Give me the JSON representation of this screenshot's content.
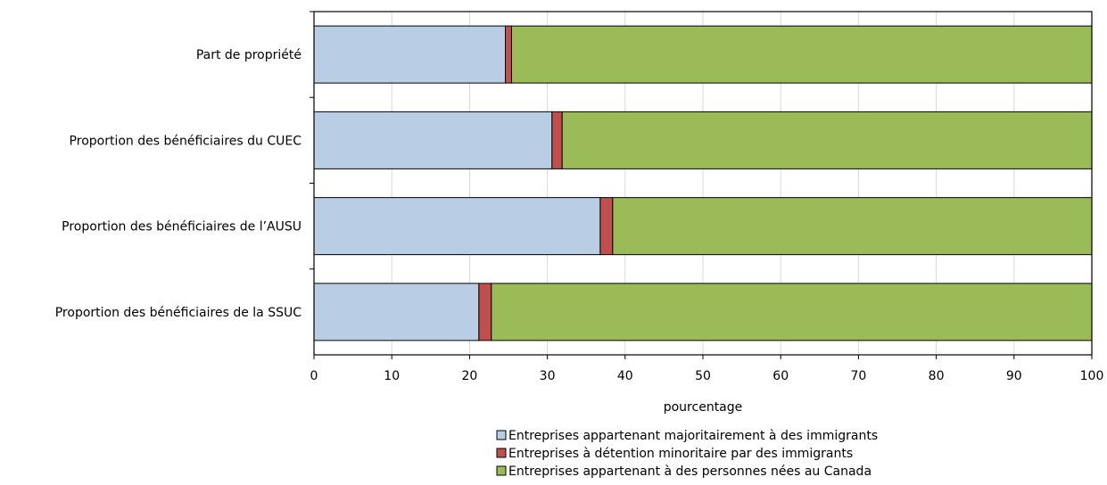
{
  "chart_data": {
    "type": "bar",
    "orientation": "horizontal",
    "stacked": true,
    "categories": [
      "Part de propriété",
      "Proportion des bénéficiaires du CUEC",
      "Proportion des bénéficiaires de l’AUSU",
      "Proportion des bénéficiaires de la SSUC"
    ],
    "series": [
      {
        "name": "Entreprises appartenant majoritairement à des immigrants",
        "color": "#b9cde5",
        "values": [
          24.6,
          30.6,
          36.8,
          21.2
        ]
      },
      {
        "name": "Entreprises à détention minoritaire par des immigrants",
        "color": "#c0504d",
        "values": [
          0.8,
          1.3,
          1.6,
          1.6
        ]
      },
      {
        "name": "Entreprises appartenant à des personnes nées au Canada",
        "color": "#9bbb59",
        "values": [
          74.6,
          68.1,
          61.6,
          77.2
        ]
      }
    ],
    "xlabel": "pourcentage",
    "xlim": [
      0,
      100
    ],
    "xticks": [
      "0",
      "10",
      "20",
      "30",
      "40",
      "50",
      "60",
      "70",
      "80",
      "90",
      "100"
    ],
    "grid": "vertical",
    "legend_position": "bottom"
  }
}
